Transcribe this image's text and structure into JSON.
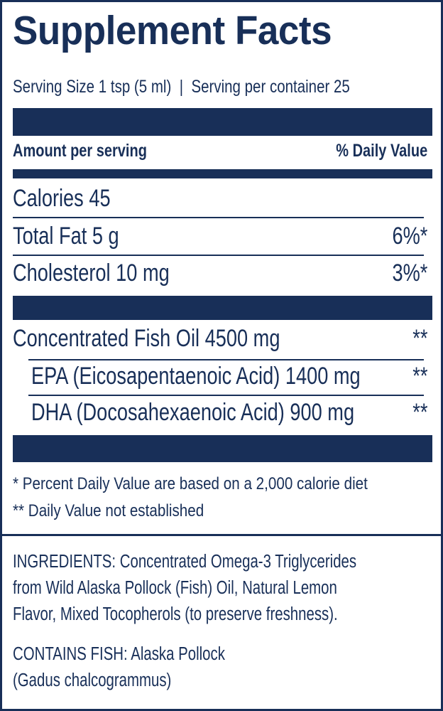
{
  "title": "Supplement Facts",
  "serving": {
    "size": "Serving Size 1 tsp (5 ml)",
    "separator": "|",
    "per_container": "Serving per container 25"
  },
  "header": {
    "amount": "Amount per serving",
    "daily_value": "% Daily Value"
  },
  "rows": [
    {
      "label": "Calories 45",
      "dv": ""
    },
    {
      "label": "Total Fat 5 g",
      "dv": "6%*"
    },
    {
      "label": "Cholesterol 10 mg",
      "dv": "3%*"
    },
    {
      "label": "Concentrated Fish Oil 4500 mg",
      "dv": "**"
    },
    {
      "label": "EPA (Eicosapentaenoic Acid) 1400 mg",
      "dv": "**"
    },
    {
      "label": "DHA (Docosahexaenoic Acid) 900 mg",
      "dv": "**"
    }
  ],
  "footnotes": [
    "* Percent Daily Value are based on a 2,000 calorie diet",
    "** Daily Value not established"
  ],
  "ingredients": {
    "lines": [
      "INGREDIENTS: Concentrated Omega-3 Triglycerides",
      "from Wild Alaska Pollock (Fish) Oil, Natural Lemon",
      "Flavor, Mixed Tocopherols (to preserve freshness)."
    ]
  },
  "contains": {
    "lines": [
      "CONTAINS FISH: Alaska Pollock",
      "(Gadus chalcogrammus)"
    ]
  },
  "colors": {
    "navy": "#182f58",
    "background": "#ffffff"
  }
}
